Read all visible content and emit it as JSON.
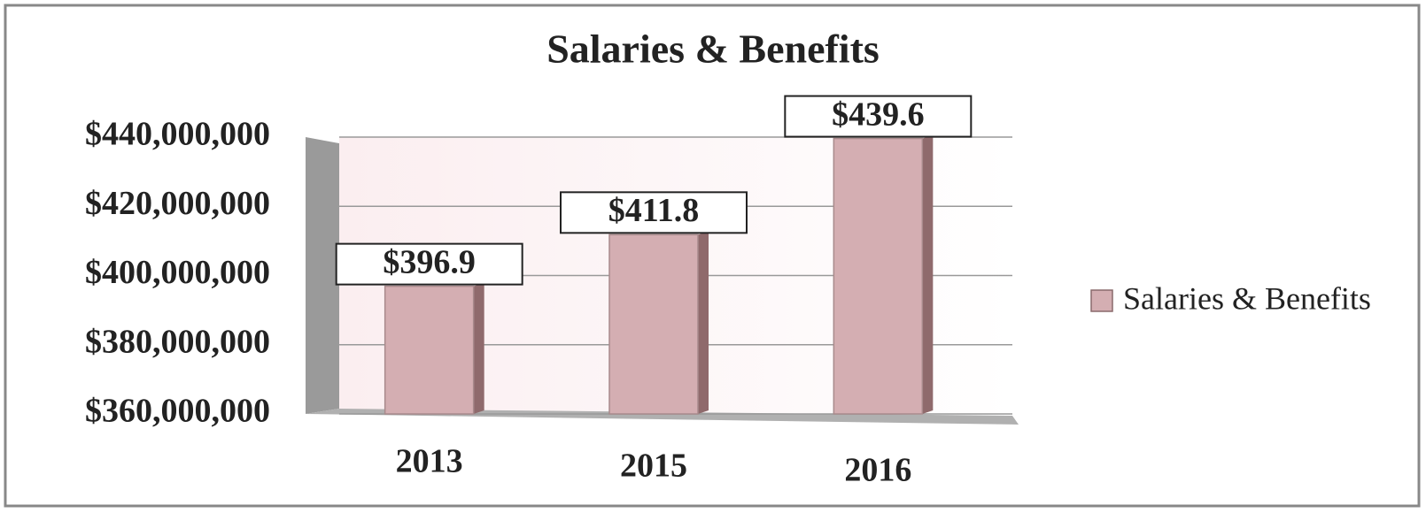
{
  "chart_data": {
    "type": "bar",
    "title": "Salaries & Benefits",
    "categories": [
      "2013",
      "2015",
      "2016"
    ],
    "series": [
      {
        "name": "Salaries & Benefits",
        "color": "#d4aeb2",
        "values": [
          396900000,
          411800000,
          439600000
        ],
        "value_labels": [
          "$396.9",
          "$411.8",
          "$439.6"
        ]
      }
    ],
    "ylim": [
      360000000,
      440000000
    ],
    "yticks": [
      {
        "value": 360000000,
        "label": "$360,000,000"
      },
      {
        "value": 380000000,
        "label": "$380,000,000"
      },
      {
        "value": 400000000,
        "label": "$400,000,000"
      },
      {
        "value": 420000000,
        "label": "$420,000,000"
      },
      {
        "value": 440000000,
        "label": "$440,000,000"
      }
    ],
    "grid": true,
    "legend": "right"
  }
}
